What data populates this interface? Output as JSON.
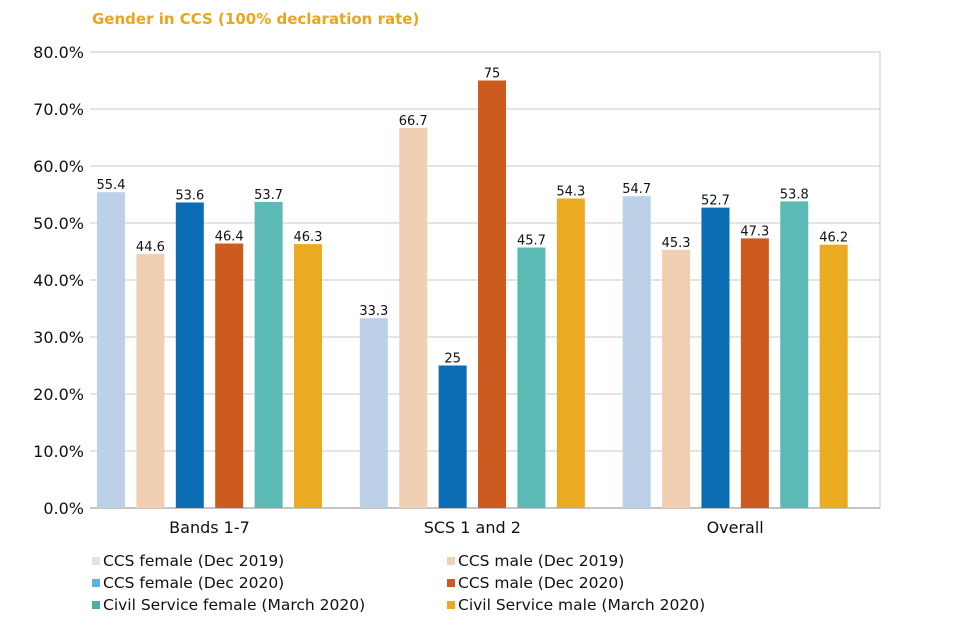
{
  "chart_data": {
    "type": "bar",
    "title": "Gender in CCS (100% declaration rate)",
    "xlabel": "",
    "ylabel": "",
    "ylim": [
      0,
      80
    ],
    "yticks": [
      "0.0%",
      "10.0%",
      "20.0%",
      "30.0%",
      "40.0%",
      "50.0%",
      "60.0%",
      "70.0%",
      "80.0%"
    ],
    "ytick_values": [
      0,
      10,
      20,
      30,
      40,
      50,
      60,
      70,
      80
    ],
    "grid": true,
    "legend_position": "bottom",
    "categories": [
      "Bands 1-7",
      "SCS 1 and 2",
      "Overall"
    ],
    "series": [
      {
        "name": "CCS female (Dec 2019)",
        "color": "#bcd0e8",
        "legend_color": "#d6e6f5",
        "values": [
          55.4,
          33.3,
          54.7
        ],
        "labels": [
          "55.4",
          "33.3",
          "54.7"
        ]
      },
      {
        "name": "CCS male (Dec 2019)",
        "color": "#f1cfb2",
        "legend_color": "#f1cfb2",
        "values": [
          44.6,
          66.7,
          45.3
        ],
        "labels": [
          "44.6",
          "66.7",
          "45.3"
        ]
      },
      {
        "name": "CCS female (Dec 2020)",
        "color": "#0a6cb2",
        "legend_color": "#5ab4e5",
        "values": [
          53.6,
          25,
          52.7
        ],
        "labels": [
          "53.6",
          "25",
          "52.7"
        ]
      },
      {
        "name": "CCS male (Dec 2020)",
        "color": "#cd5a1e",
        "legend_color": "#cd5a1e",
        "values": [
          46.4,
          75,
          47.3
        ],
        "labels": [
          "46.4",
          "75",
          "47.3"
        ]
      },
      {
        "name": "Civil Service female (March 2020)",
        "color": "#5cbab5",
        "legend_color": "#4fb0a2",
        "values": [
          53.7,
          45.7,
          53.8
        ],
        "labels": [
          "53.7",
          "45.7",
          "53.8"
        ]
      },
      {
        "name": "Civil Service male (March 2020)",
        "color": "#eaab22",
        "legend_color": "#eaab22",
        "values": [
          46.3,
          54.3,
          46.2
        ],
        "labels": [
          "46.3",
          "54.3",
          "46.2"
        ]
      }
    ]
  }
}
